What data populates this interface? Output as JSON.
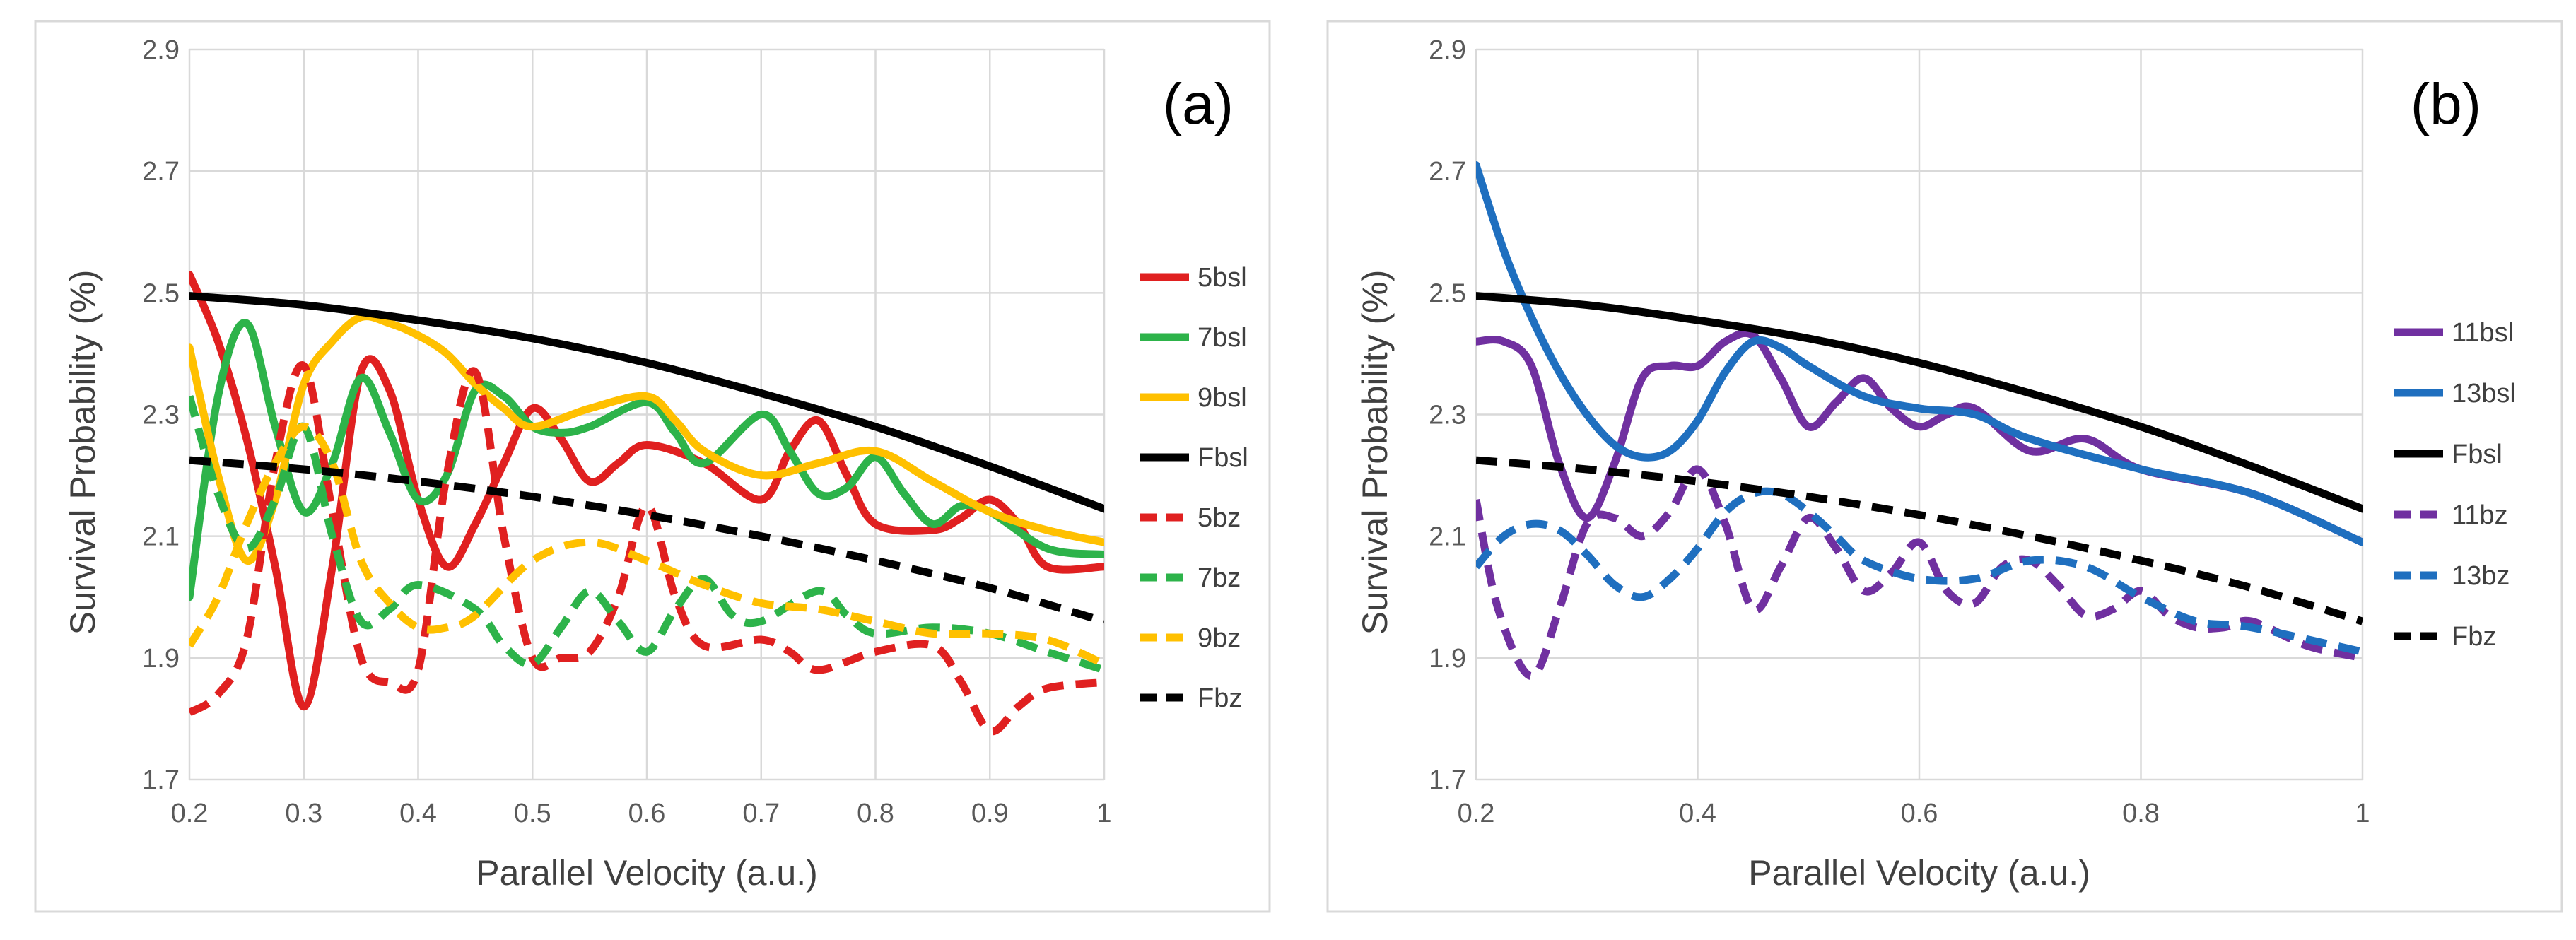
{
  "chart_data": [
    {
      "type": "line",
      "panel_label": "(a)",
      "xlabel": "Parallel Velocity (a.u.)",
      "ylabel": "Survival Probability (%)",
      "xlim": [
        0.2,
        1.0
      ],
      "ylim": [
        1.7,
        2.9
      ],
      "x_ticks": [
        0.2,
        0.3,
        0.4,
        0.5,
        0.6,
        0.7,
        0.8,
        0.9,
        1.0
      ],
      "x_tick_labels": [
        "0.2",
        "0.3",
        "0.4",
        "0.5",
        "0.6",
        "0.7",
        "0.8",
        "0.9",
        "1"
      ],
      "y_ticks": [
        1.7,
        1.9,
        2.1,
        2.3,
        2.5,
        2.7,
        2.9
      ],
      "y_tick_labels": [
        "1.7",
        "1.9",
        "2.1",
        "2.3",
        "2.5",
        "2.7",
        "2.9"
      ],
      "grid": true,
      "legend_position": "right",
      "series": [
        {
          "name": "5bsl",
          "color": "#e02020",
          "dash": "solid",
          "x": [
            0.2,
            0.225,
            0.25,
            0.275,
            0.3,
            0.325,
            0.35,
            0.375,
            0.4,
            0.425,
            0.45,
            0.475,
            0.5,
            0.525,
            0.55,
            0.575,
            0.6,
            0.65,
            0.7,
            0.725,
            0.75,
            0.775,
            0.8,
            0.85,
            0.875,
            0.9,
            0.925,
            0.95,
            1.0
          ],
          "y": [
            2.53,
            2.42,
            2.26,
            2.05,
            1.82,
            2.05,
            2.37,
            2.34,
            2.16,
            2.05,
            2.12,
            2.22,
            2.31,
            2.26,
            2.19,
            2.22,
            2.25,
            2.22,
            2.16,
            2.24,
            2.29,
            2.2,
            2.12,
            2.11,
            2.13,
            2.16,
            2.12,
            2.05,
            2.05
          ]
        },
        {
          "name": "7bsl",
          "color": "#2db34a",
          "dash": "solid",
          "x": [
            0.2,
            0.225,
            0.25,
            0.275,
            0.3,
            0.325,
            0.35,
            0.375,
            0.4,
            0.425,
            0.45,
            0.475,
            0.5,
            0.525,
            0.55,
            0.6,
            0.625,
            0.65,
            0.7,
            0.725,
            0.75,
            0.775,
            0.8,
            0.825,
            0.85,
            0.875,
            0.9,
            0.95,
            1.0
          ],
          "y": [
            2.0,
            2.33,
            2.45,
            2.28,
            2.14,
            2.22,
            2.36,
            2.27,
            2.16,
            2.2,
            2.34,
            2.33,
            2.28,
            2.27,
            2.28,
            2.32,
            2.27,
            2.22,
            2.3,
            2.24,
            2.17,
            2.18,
            2.23,
            2.17,
            2.12,
            2.15,
            2.14,
            2.08,
            2.07
          ]
        },
        {
          "name": "9bsl",
          "color": "#ffc000",
          "dash": "solid",
          "x": [
            0.2,
            0.225,
            0.25,
            0.275,
            0.3,
            0.325,
            0.35,
            0.375,
            0.4,
            0.425,
            0.45,
            0.475,
            0.5,
            0.55,
            0.6,
            0.625,
            0.65,
            0.7,
            0.75,
            0.8,
            0.85,
            0.9,
            0.95,
            1.0
          ],
          "y": [
            2.41,
            2.2,
            2.06,
            2.16,
            2.35,
            2.42,
            2.46,
            2.45,
            2.43,
            2.4,
            2.35,
            2.31,
            2.28,
            2.31,
            2.33,
            2.29,
            2.24,
            2.2,
            2.22,
            2.24,
            2.19,
            2.14,
            2.11,
            2.09
          ]
        },
        {
          "name": "Fbsl",
          "color": "#000000",
          "dash": "solid",
          "x": [
            0.2,
            0.3,
            0.4,
            0.5,
            0.6,
            0.7,
            0.8,
            0.9,
            1.0
          ],
          "y": [
            2.495,
            2.48,
            2.455,
            2.425,
            2.385,
            2.335,
            2.28,
            2.215,
            2.145
          ]
        },
        {
          "name": "5bz",
          "color": "#e02020",
          "dash": "dashed",
          "x": [
            0.2,
            0.225,
            0.25,
            0.275,
            0.3,
            0.325,
            0.35,
            0.375,
            0.4,
            0.425,
            0.45,
            0.475,
            0.5,
            0.525,
            0.55,
            0.575,
            0.6,
            0.625,
            0.65,
            0.7,
            0.725,
            0.75,
            0.8,
            0.85,
            0.875,
            0.9,
            0.925,
            0.95,
            1.0
          ],
          "y": [
            1.81,
            1.84,
            1.93,
            2.22,
            2.38,
            2.14,
            1.9,
            1.86,
            1.88,
            2.2,
            2.37,
            2.1,
            1.9,
            1.9,
            1.91,
            2.0,
            2.15,
            2.0,
            1.92,
            1.93,
            1.91,
            1.88,
            1.91,
            1.92,
            1.86,
            1.78,
            1.82,
            1.85,
            1.86
          ]
        },
        {
          "name": "7bz",
          "color": "#2db34a",
          "dash": "dashed",
          "x": [
            0.2,
            0.225,
            0.25,
            0.275,
            0.3,
            0.325,
            0.35,
            0.375,
            0.4,
            0.45,
            0.475,
            0.5,
            0.525,
            0.55,
            0.575,
            0.6,
            0.625,
            0.65,
            0.675,
            0.7,
            0.75,
            0.775,
            0.8,
            0.85,
            0.9,
            0.95,
            1.0
          ],
          "y": [
            2.33,
            2.17,
            2.08,
            2.16,
            2.28,
            2.1,
            1.96,
            1.98,
            2.02,
            1.98,
            1.92,
            1.89,
            1.95,
            2.01,
            1.96,
            1.91,
            1.98,
            2.03,
            1.97,
            1.96,
            2.01,
            1.97,
            1.94,
            1.95,
            1.94,
            1.91,
            1.88
          ]
        },
        {
          "name": "9bz",
          "color": "#ffc000",
          "dash": "dashed",
          "x": [
            0.2,
            0.225,
            0.25,
            0.275,
            0.3,
            0.325,
            0.35,
            0.375,
            0.4,
            0.425,
            0.45,
            0.5,
            0.55,
            0.6,
            0.65,
            0.7,
            0.75,
            0.8,
            0.85,
            0.9,
            0.95,
            1.0
          ],
          "y": [
            1.92,
            2.0,
            2.12,
            2.22,
            2.28,
            2.22,
            2.06,
            1.99,
            1.95,
            1.95,
            1.97,
            2.06,
            2.09,
            2.06,
            2.02,
            1.99,
            1.98,
            1.96,
            1.94,
            1.94,
            1.93,
            1.89
          ]
        },
        {
          "name": "Fbz",
          "color": "#000000",
          "dash": "dashed",
          "x": [
            0.2,
            0.3,
            0.4,
            0.5,
            0.6,
            0.7,
            0.8,
            0.9,
            1.0
          ],
          "y": [
            2.225,
            2.21,
            2.19,
            2.165,
            2.135,
            2.1,
            2.06,
            2.015,
            1.96
          ]
        }
      ]
    },
    {
      "type": "line",
      "panel_label": "(b)",
      "xlabel": "Parallel Velocity (a.u.)",
      "ylabel": "Survival Probability (%)",
      "xlim": [
        0.2,
        1.0
      ],
      "ylim": [
        1.7,
        2.9
      ],
      "x_ticks": [
        0.2,
        0.4,
        0.6,
        0.8,
        1.0
      ],
      "x_tick_labels": [
        "0.2",
        "0.4",
        "0.6",
        "0.8",
        "1"
      ],
      "y_ticks": [
        1.7,
        1.9,
        2.1,
        2.3,
        2.5,
        2.7,
        2.9
      ],
      "y_tick_labels": [
        "1.7",
        "1.9",
        "2.1",
        "2.3",
        "2.5",
        "2.7",
        "2.9"
      ],
      "grid": true,
      "legend_position": "right",
      "series": [
        {
          "name": "11bsl",
          "color": "#7030a0",
          "dash": "solid",
          "x": [
            0.2,
            0.225,
            0.25,
            0.275,
            0.3,
            0.325,
            0.35,
            0.375,
            0.4,
            0.425,
            0.45,
            0.475,
            0.5,
            0.525,
            0.55,
            0.575,
            0.6,
            0.625,
            0.65,
            0.7,
            0.75,
            0.8,
            0.9,
            1.0
          ],
          "y": [
            2.42,
            2.42,
            2.38,
            2.22,
            2.13,
            2.22,
            2.36,
            2.38,
            2.38,
            2.42,
            2.43,
            2.36,
            2.28,
            2.32,
            2.36,
            2.31,
            2.28,
            2.3,
            2.31,
            2.24,
            2.26,
            2.21,
            2.17,
            2.09
          ]
        },
        {
          "name": "13bsl",
          "color": "#1f6fbf",
          "dash": "solid",
          "x": [
            0.2,
            0.225,
            0.25,
            0.275,
            0.3,
            0.325,
            0.35,
            0.375,
            0.4,
            0.425,
            0.45,
            0.475,
            0.5,
            0.55,
            0.6,
            0.65,
            0.7,
            0.8,
            0.9,
            1.0
          ],
          "y": [
            2.71,
            2.57,
            2.46,
            2.37,
            2.3,
            2.25,
            2.23,
            2.24,
            2.29,
            2.37,
            2.42,
            2.41,
            2.38,
            2.33,
            2.31,
            2.3,
            2.26,
            2.21,
            2.17,
            2.09
          ]
        },
        {
          "name": "Fbsl",
          "color": "#000000",
          "dash": "solid",
          "x": [
            0.2,
            0.3,
            0.4,
            0.5,
            0.6,
            0.7,
            0.8,
            0.9,
            1.0
          ],
          "y": [
            2.495,
            2.48,
            2.455,
            2.425,
            2.385,
            2.335,
            2.28,
            2.215,
            2.145
          ]
        },
        {
          "name": "11bz",
          "color": "#7030a0",
          "dash": "dashed",
          "x": [
            0.2,
            0.22,
            0.25,
            0.275,
            0.3,
            0.325,
            0.35,
            0.375,
            0.4,
            0.425,
            0.45,
            0.475,
            0.5,
            0.525,
            0.55,
            0.575,
            0.6,
            0.625,
            0.65,
            0.675,
            0.7,
            0.725,
            0.75,
            0.775,
            0.8,
            0.825,
            0.85,
            0.875,
            0.9,
            0.95,
            1.0
          ],
          "y": [
            2.16,
            1.98,
            1.87,
            1.98,
            2.12,
            2.13,
            2.1,
            2.14,
            2.21,
            2.12,
            1.98,
            2.05,
            2.13,
            2.08,
            2.01,
            2.04,
            2.09,
            2.01,
            1.99,
            2.05,
            2.06,
            2.02,
            1.97,
            1.98,
            2.01,
            1.97,
            1.95,
            1.95,
            1.96,
            1.92,
            1.9
          ]
        },
        {
          "name": "13bz",
          "color": "#1f6fbf",
          "dash": "dashed",
          "x": [
            0.2,
            0.225,
            0.25,
            0.275,
            0.3,
            0.325,
            0.35,
            0.375,
            0.4,
            0.425,
            0.45,
            0.475,
            0.5,
            0.525,
            0.55,
            0.6,
            0.65,
            0.7,
            0.75,
            0.8,
            0.85,
            0.9,
            1.0
          ],
          "y": [
            2.05,
            2.1,
            2.12,
            2.11,
            2.07,
            2.02,
            2.0,
            2.03,
            2.08,
            2.14,
            2.17,
            2.17,
            2.14,
            2.1,
            2.06,
            2.03,
            2.03,
            2.06,
            2.05,
            2.0,
            1.96,
            1.95,
            1.91
          ]
        },
        {
          "name": "Fbz",
          "color": "#000000",
          "dash": "dashed",
          "x": [
            0.2,
            0.3,
            0.4,
            0.5,
            0.6,
            0.7,
            0.8,
            0.9,
            1.0
          ],
          "y": [
            2.225,
            2.21,
            2.19,
            2.165,
            2.135,
            2.1,
            2.06,
            2.015,
            1.96
          ]
        }
      ]
    }
  ]
}
